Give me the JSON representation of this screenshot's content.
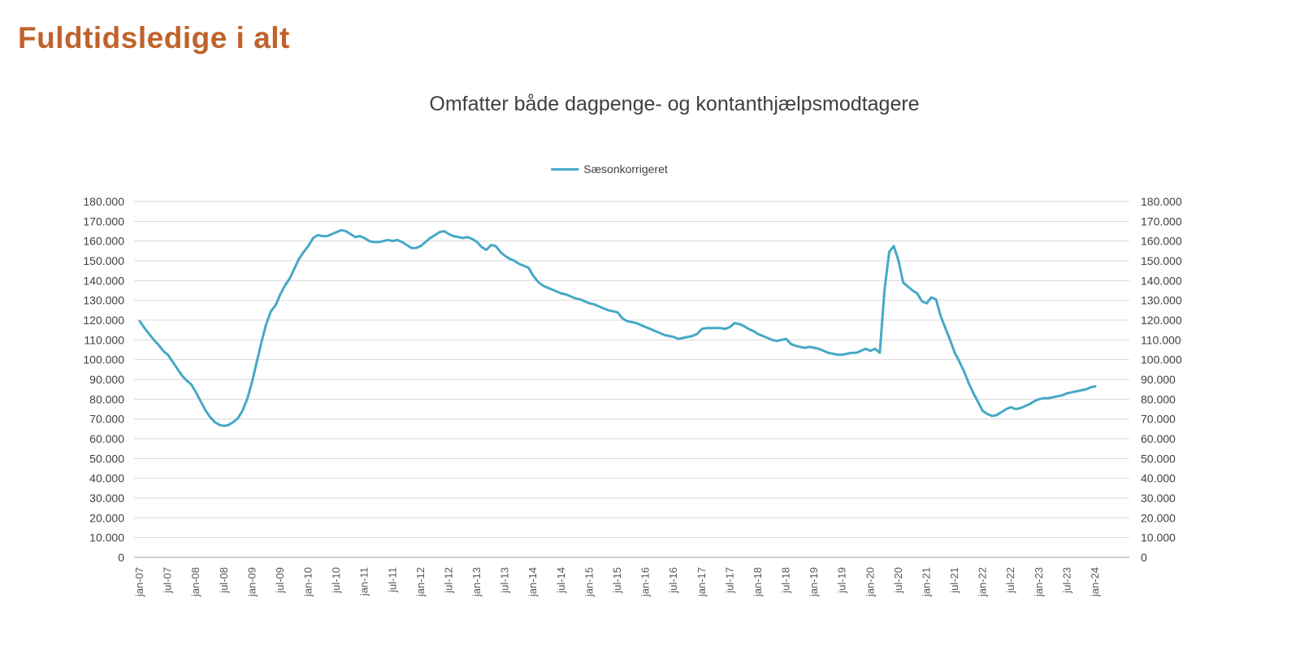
{
  "page": {
    "title": "Fuldtidsledige i alt"
  },
  "chart_data": {
    "type": "line",
    "title": "Omfatter både dagpenge- og kontanthjælpsmodtagere",
    "legend_position": "top-center",
    "grid": true,
    "y_axis_sides": "both",
    "ylim": [
      0,
      180000
    ],
    "y_tick_step": 10000,
    "y_tick_labels": [
      "0",
      "10.000",
      "20.000",
      "30.000",
      "40.000",
      "50.000",
      "60.000",
      "70.000",
      "80.000",
      "90.000",
      "100.000",
      "110.000",
      "120.000",
      "130.000",
      "140.000",
      "150.000",
      "160.000",
      "170.000",
      "180.000"
    ],
    "x_label_every": 6,
    "x_labels": [
      "jan-07",
      "jul-07",
      "jan-08",
      "jul-08",
      "jan-09",
      "jul-09",
      "jan-10",
      "jul-10",
      "jan-11",
      "jul-11",
      "jan-12",
      "jul-12",
      "jan-13",
      "jul-13",
      "jan-14",
      "jul-14",
      "jan-15",
      "jul-15",
      "jan-16",
      "jul-16",
      "jan-17",
      "jul-17",
      "jan-18",
      "jul-18",
      "jan-19",
      "jul-19",
      "jan-20",
      "jul-20",
      "jan-21",
      "jul-21",
      "jan-22",
      "jul-22",
      "jan-23",
      "jul-23",
      "jan-24"
    ],
    "series": [
      {
        "name": "Sæsonkorrigeret",
        "color": "#45A9C6",
        "values": [
          119500,
          116000,
          113000,
          110000,
          107500,
          104500,
          102500,
          99000,
          95500,
          92000,
          89500,
          87500,
          83500,
          79000,
          74500,
          71000,
          68500,
          67000,
          66500,
          67000,
          68500,
          70500,
          74500,
          80500,
          89000,
          99000,
          109000,
          118000,
          124500,
          127500,
          133000,
          137500,
          141000,
          146000,
          151000,
          154500,
          157500,
          161500,
          163000,
          162500,
          162500,
          163500,
          164500,
          165500,
          165000,
          163500,
          162000,
          162500,
          161500,
          160000,
          159500,
          159500,
          160000,
          160500,
          160000,
          160500,
          159500,
          158000,
          156500,
          156500,
          157500,
          159500,
          161500,
          163000,
          164500,
          165000,
          163500,
          162500,
          162000,
          161500,
          162000,
          161000,
          159500,
          157000,
          155500,
          158000,
          157500,
          154500,
          152500,
          151000,
          150000,
          148500,
          147500,
          146500,
          142500,
          139500,
          137500,
          136500,
          135500,
          134500,
          133500,
          133000,
          132000,
          131000,
          130500,
          129500,
          128500,
          128000,
          127000,
          126000,
          125000,
          124500,
          124000,
          121000,
          119500,
          119000,
          118500,
          117500,
          116500,
          115500,
          114500,
          113500,
          112500,
          112000,
          111500,
          110500,
          111000,
          111500,
          112000,
          113000,
          115500,
          116000,
          116000,
          116000,
          116000,
          115500,
          116500,
          118500,
          118000,
          117000,
          115500,
          114500,
          113000,
          112000,
          111000,
          110000,
          109500,
          110000,
          110500,
          108000,
          107000,
          106500,
          106000,
          106500,
          106000,
          105500,
          104500,
          103500,
          103000,
          102500,
          102500,
          103000,
          103500,
          103500,
          104500,
          105500,
          104500,
          105500,
          103500,
          135000,
          154500,
          157500,
          150000,
          139000,
          137000,
          135000,
          133500,
          129500,
          128500,
          131500,
          130500,
          122000,
          116000,
          110000,
          103500,
          99000,
          94000,
          88000,
          83000,
          78500,
          74000,
          72500,
          71500,
          72000,
          73500,
          75000,
          76000,
          75000,
          75500,
          76500,
          77500,
          79000,
          80000,
          80500,
          80500,
          81000,
          81500,
          82000,
          83000,
          83500,
          84000,
          84500,
          85000,
          86000,
          86500
        ]
      }
    ],
    "colors": {
      "title_accent": "#C0622B",
      "line": "#45A9C6",
      "gridline": "#D9D9D9",
      "axis_line": "#9E9E9E",
      "axis_text": "#404040"
    }
  }
}
